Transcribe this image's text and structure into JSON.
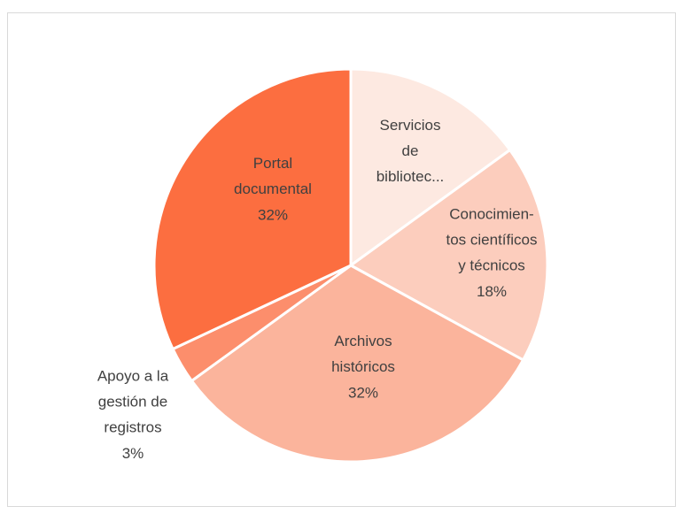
{
  "chart_data": {
    "type": "pie",
    "categories": [
      "Servicios\nde\nbibliotec...",
      "Conocimien-\ntos científicos\ny técnicos",
      "Archivos\nhistóricos",
      "Apoyo a la\ngestión de\nregistros",
      "Portal\ndocumental"
    ],
    "values": [
      15,
      18,
      32,
      3,
      32
    ],
    "value_labels": [
      null,
      "18%",
      "32%",
      "3%",
      "32%"
    ],
    "colors": [
      "#fde9e1",
      "#fccdbd",
      "#fbb49c",
      "#fc8e6c",
      "#fc6e40"
    ]
  }
}
